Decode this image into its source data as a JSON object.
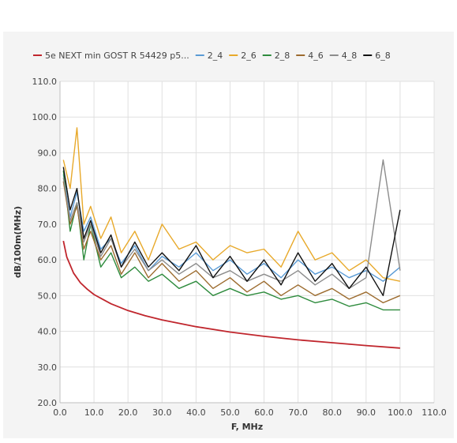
{
  "chart_data": {
    "type": "line",
    "title": "",
    "xlabel": "F, MHz",
    "ylabel": "dB/100m(MHz)",
    "xlim": [
      0,
      110
    ],
    "ylim": [
      20,
      110
    ],
    "xticks": [
      "0.0",
      "10.0",
      "20.0",
      "30.0",
      "40.0",
      "50.0",
      "60.0",
      "70.0",
      "80.0",
      "90.0",
      "100.0",
      "110.0"
    ],
    "yticks": [
      "20.0",
      "30.0",
      "40.0",
      "50.0",
      "60.0",
      "70.0",
      "80.0",
      "90.0",
      "100.0",
      "110.0"
    ],
    "grid": true,
    "legend_position": "top",
    "series": [
      {
        "name": "5e NEXT min GOST R 54429 p5...",
        "color": "#c0262d",
        "x": [
          1,
          2,
          4,
          6,
          8,
          10,
          15,
          20,
          25,
          30,
          40,
          50,
          60,
          70,
          80,
          90,
          100
        ],
        "y": [
          65.3,
          60.8,
          56.3,
          53.6,
          51.8,
          50.3,
          47.7,
          45.8,
          44.4,
          43.2,
          41.3,
          39.8,
          38.6,
          37.6,
          36.8,
          36.0,
          35.3
        ]
      },
      {
        "name": "2_4",
        "color": "#5a9bd5",
        "x": [
          1,
          3,
          5,
          7,
          9,
          12,
          15,
          18,
          22,
          26,
          30,
          35,
          40,
          45,
          50,
          55,
          60,
          65,
          70,
          75,
          80,
          85,
          90,
          95,
          100
        ],
        "y": [
          84,
          72,
          79,
          68,
          72,
          63,
          66,
          59,
          64,
          57,
          61,
          58,
          62,
          57,
          60,
          56,
          59,
          55,
          60,
          56,
          58,
          55,
          57,
          54,
          58
        ]
      },
      {
        "name": "2_6",
        "color": "#e8a92a",
        "x": [
          1,
          3,
          5,
          7,
          9,
          12,
          15,
          18,
          22,
          26,
          30,
          35,
          40,
          45,
          50,
          55,
          60,
          65,
          70,
          75,
          80,
          85,
          90,
          95,
          100
        ],
        "y": [
          88,
          80,
          97,
          70,
          75,
          66,
          72,
          62,
          68,
          60,
          70,
          63,
          65,
          60,
          64,
          62,
          63,
          58,
          68,
          60,
          62,
          57,
          60,
          55,
          54
        ]
      },
      {
        "name": "2_8",
        "color": "#2e8b3d",
        "x": [
          1,
          3,
          5,
          7,
          9,
          12,
          15,
          18,
          22,
          26,
          30,
          35,
          40,
          45,
          50,
          55,
          60,
          65,
          70,
          75,
          80,
          85,
          90,
          95,
          100
        ],
        "y": [
          85,
          68,
          76,
          60,
          70,
          58,
          62,
          55,
          58,
          54,
          56,
          52,
          54,
          50,
          52,
          50,
          51,
          49,
          50,
          48,
          49,
          47,
          48,
          46,
          46
        ]
      },
      {
        "name": "4_6",
        "color": "#9c6b2e",
        "x": [
          1,
          3,
          5,
          7,
          9,
          12,
          15,
          18,
          22,
          26,
          30,
          35,
          40,
          45,
          50,
          55,
          60,
          65,
          70,
          75,
          80,
          85,
          90,
          95,
          100
        ],
        "y": [
          82,
          70,
          75,
          63,
          68,
          60,
          64,
          56,
          62,
          55,
          59,
          54,
          57,
          52,
          55,
          51,
          54,
          50,
          53,
          50,
          52,
          49,
          51,
          48,
          50
        ]
      },
      {
        "name": "4_8",
        "color": "#8c8c8c",
        "x": [
          1,
          3,
          5,
          7,
          9,
          12,
          15,
          18,
          22,
          26,
          30,
          35,
          40,
          45,
          50,
          55,
          60,
          65,
          70,
          75,
          80,
          85,
          90,
          95,
          100
        ],
        "y": [
          83,
          71,
          76,
          65,
          70,
          61,
          66,
          58,
          63,
          57,
          60,
          56,
          59,
          55,
          57,
          54,
          56,
          54,
          57,
          53,
          56,
          52,
          55,
          88,
          57
        ]
      },
      {
        "name": "6_8",
        "color": "#111111",
        "x": [
          1,
          3,
          5,
          7,
          9,
          12,
          15,
          18,
          22,
          26,
          30,
          35,
          40,
          45,
          50,
          55,
          60,
          65,
          70,
          75,
          80,
          85,
          90,
          95,
          100
        ],
        "y": [
          86,
          74,
          80,
          66,
          71,
          62,
          67,
          58,
          65,
          58,
          62,
          57,
          64,
          55,
          61,
          54,
          60,
          53,
          62,
          54,
          59,
          52,
          58,
          50,
          74
        ]
      }
    ]
  }
}
